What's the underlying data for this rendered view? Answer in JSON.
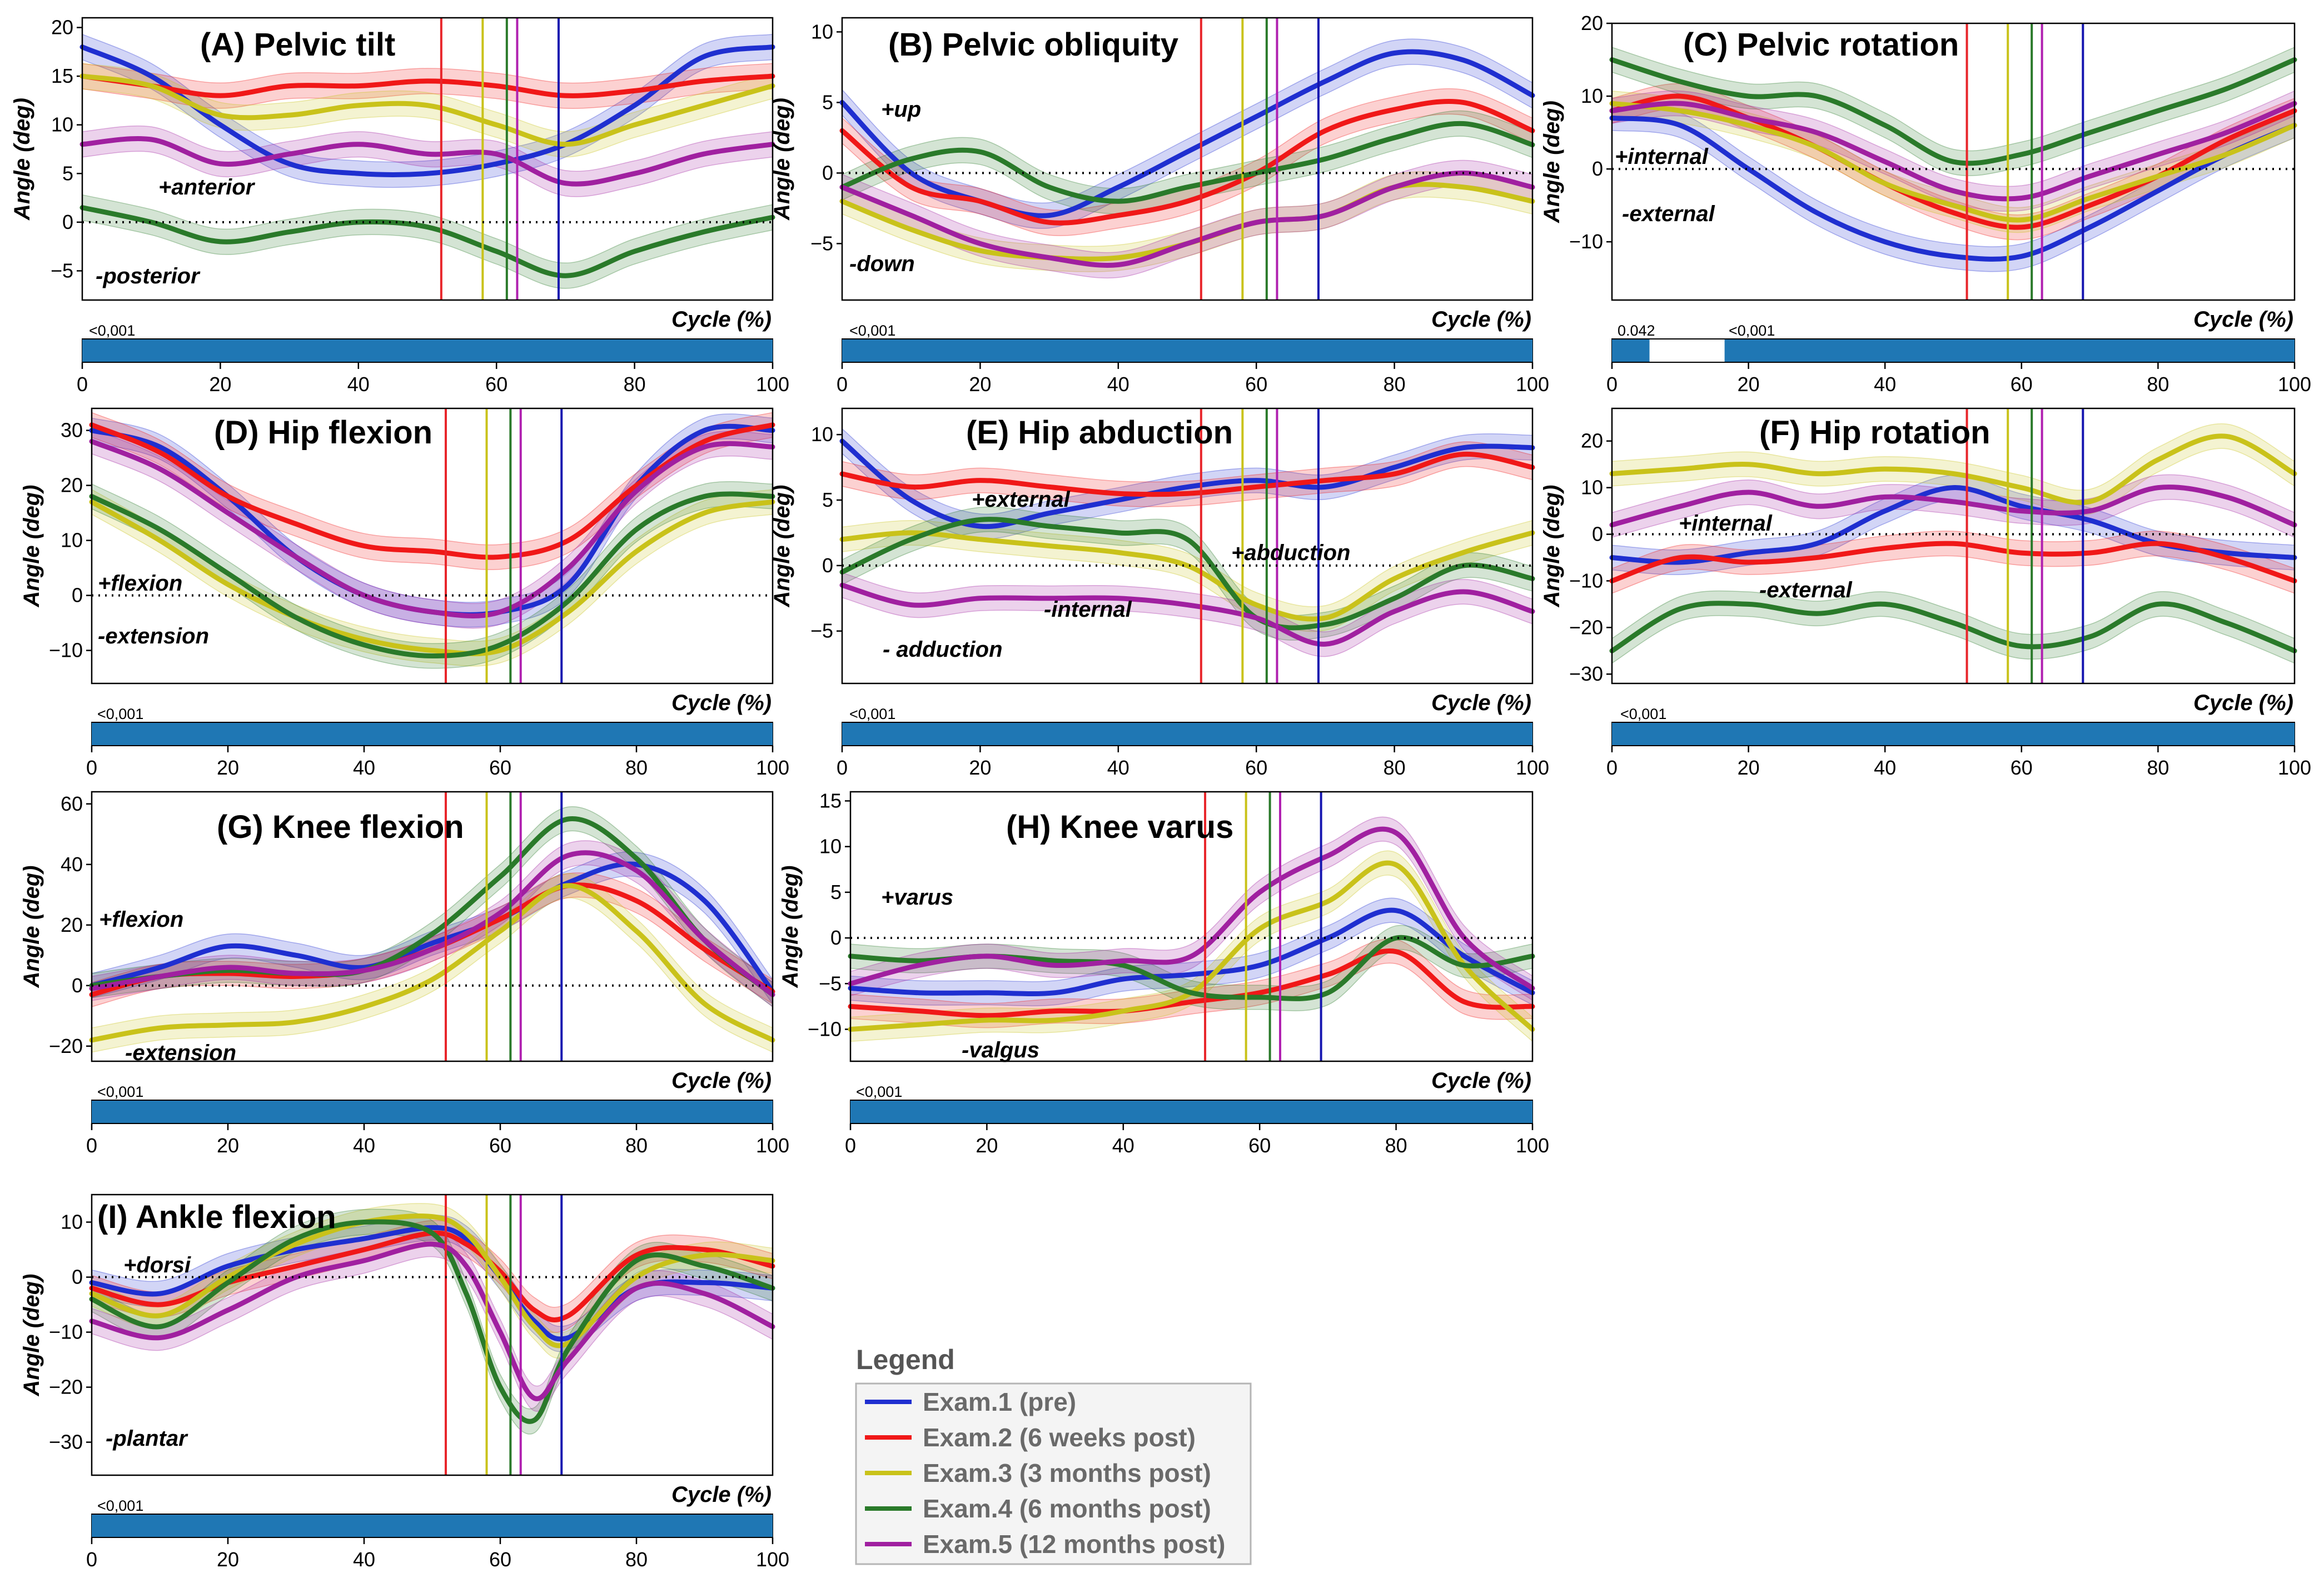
{
  "figure": {
    "x_label": "Cycle (%)",
    "y_label": "Angle (deg)",
    "x_ticks": [
      0,
      20,
      40,
      60,
      80,
      100
    ],
    "spm_color": "#1f77b4"
  },
  "events": {
    "x": [
      52,
      58,
      61.5,
      63,
      69
    ],
    "colors": [
      "#e8262b",
      "#c9c21a",
      "#2a7a2a",
      "#b020b0",
      "#1515b0"
    ]
  },
  "legend": {
    "title": "Legend",
    "items": [
      {
        "label": "Exam.1 (pre)",
        "color": "#1f2fd0"
      },
      {
        "label": "Exam.2 (6 weeks post)",
        "color": "#f01818"
      },
      {
        "label": "Exam.3 (3 months post)",
        "color": "#c9c21a"
      },
      {
        "label": "Exam.4 (6 months post)",
        "color": "#2a7a2a"
      },
      {
        "label": "Exam.5 (12 months post)",
        "color": "#a020a0"
      }
    ]
  },
  "chart_data": [
    {
      "type": "line",
      "title": "(A) Pelvic tilt",
      "xlabel": "Cycle (%)",
      "ylabel": "Angle (deg)",
      "xlim": [
        0,
        100
      ],
      "ylim": [
        -8,
        21
      ],
      "yticks": [
        -5,
        0,
        5,
        10,
        15,
        20
      ],
      "x": [
        0,
        10,
        20,
        30,
        40,
        50,
        60,
        70,
        80,
        90,
        100
      ],
      "series": [
        {
          "name": "Exam.1 (pre)",
          "values": [
            18,
            15,
            10,
            6,
            5,
            5,
            6,
            8,
            12,
            17,
            18
          ]
        },
        {
          "name": "Exam.2 (6 weeks post)",
          "values": [
            15,
            14,
            13,
            14,
            14,
            14.5,
            14,
            13,
            13.5,
            14.5,
            15
          ]
        },
        {
          "name": "Exam.3 (3 months post)",
          "values": [
            15,
            14,
            11,
            11,
            12,
            12,
            10,
            8,
            10,
            12,
            14
          ]
        },
        {
          "name": "Exam.4 (6 months post)",
          "values": [
            1.5,
            0,
            -2,
            -1,
            0,
            -0.5,
            -3,
            -5.5,
            -3,
            -1,
            0.5
          ]
        },
        {
          "name": "Exam.5 (12 months post)",
          "values": [
            8,
            8.5,
            6,
            7,
            8,
            7,
            7,
            4,
            5,
            7,
            8
          ]
        }
      ],
      "notes": [
        "+anterior",
        "-posterior"
      ],
      "pvalues": [
        "<0,001"
      ],
      "spm_ranges": [
        [
          0,
          100
        ]
      ]
    },
    {
      "type": "line",
      "title": "(B) Pelvic obliquity",
      "xlabel": "Cycle (%)",
      "ylabel": "Angle (deg)",
      "xlim": [
        0,
        100
      ],
      "ylim": [
        -9,
        11
      ],
      "yticks": [
        -5,
        0,
        5,
        10
      ],
      "x": [
        0,
        10,
        20,
        30,
        40,
        50,
        60,
        70,
        80,
        90,
        100
      ],
      "series": [
        {
          "name": "Exam.1 (pre)",
          "values": [
            5,
            0,
            -2,
            -3,
            -1,
            1.5,
            4,
            6.5,
            8.5,
            8,
            5.5
          ]
        },
        {
          "name": "Exam.2 (6 weeks post)",
          "values": [
            3,
            -1,
            -2,
            -3.5,
            -3,
            -2,
            0,
            3,
            4.5,
            5,
            3
          ]
        },
        {
          "name": "Exam.3 (3 months post)",
          "values": [
            -2,
            -4,
            -5.5,
            -6,
            -6,
            -5,
            -3.5,
            -3,
            -1,
            -1,
            -2
          ]
        },
        {
          "name": "Exam.4 (6 months post)",
          "values": [
            -1,
            1,
            1.5,
            -1,
            -2,
            -1,
            0,
            1,
            2.5,
            3.5,
            2
          ]
        },
        {
          "name": "Exam.5 (12 months post)",
          "values": [
            -1,
            -3,
            -5,
            -6,
            -6.5,
            -5,
            -3.5,
            -3,
            -1,
            0,
            -1
          ]
        }
      ],
      "notes": [
        "+up",
        "-down"
      ],
      "pvalues": [
        "<0,001"
      ],
      "spm_ranges": [
        [
          0,
          100
        ]
      ]
    },
    {
      "type": "line",
      "title": "(C) Pelvic rotation",
      "xlabel": "Cycle (%)",
      "ylabel": "Angle (deg)",
      "xlim": [
        0,
        100
      ],
      "ylim": [
        -18,
        20
      ],
      "yticks": [
        -10,
        0,
        10,
        20
      ],
      "x": [
        0,
        10,
        20,
        30,
        40,
        50,
        60,
        70,
        80,
        90,
        100
      ],
      "series": [
        {
          "name": "Exam.1 (pre)",
          "values": [
            7,
            6,
            0,
            -6,
            -10,
            -12,
            -12,
            -8,
            -3,
            2,
            6
          ]
        },
        {
          "name": "Exam.2 (6 weeks post)",
          "values": [
            8,
            10,
            7,
            3,
            -2,
            -6,
            -8,
            -5,
            -1,
            4,
            8
          ]
        },
        {
          "name": "Exam.3 (3 months post)",
          "values": [
            9,
            8,
            6,
            3,
            -2,
            -5,
            -7,
            -4,
            -1,
            2,
            6
          ]
        },
        {
          "name": "Exam.4 (6 months post)",
          "values": [
            15,
            12,
            10,
            10,
            6,
            1,
            2,
            5,
            8,
            11,
            15
          ]
        },
        {
          "name": "Exam.5 (12 months post)",
          "values": [
            8,
            9,
            7,
            5,
            1,
            -3,
            -4,
            -1,
            2,
            5,
            9
          ]
        }
      ],
      "notes": [
        "+internal",
        "-external"
      ],
      "pvalues": [
        "0.042",
        "<0,001"
      ],
      "spm_ranges": [
        [
          0,
          5.5
        ],
        [
          16.5,
          100
        ]
      ]
    },
    {
      "type": "line",
      "title": "(D) Hip flexion",
      "xlabel": "Cycle (%)",
      "ylabel": "Angle (deg)",
      "xlim": [
        0,
        100
      ],
      "ylim": [
        -16,
        34
      ],
      "yticks": [
        -10,
        0,
        10,
        20,
        30
      ],
      "x": [
        0,
        10,
        20,
        30,
        40,
        50,
        60,
        70,
        80,
        90,
        100
      ],
      "series": [
        {
          "name": "Exam.1 (pre)",
          "values": [
            30,
            27,
            18,
            7,
            0,
            -3,
            -3,
            2,
            20,
            30,
            30
          ]
        },
        {
          "name": "Exam.2 (6 weeks post)",
          "values": [
            31,
            26,
            18,
            13,
            9,
            8,
            7,
            10,
            20,
            28,
            31
          ]
        },
        {
          "name": "Exam.3 (3 months post)",
          "values": [
            17,
            10,
            2,
            -4,
            -8,
            -10,
            -10,
            -3,
            8,
            15,
            17
          ]
        },
        {
          "name": "Exam.4 (6 months post)",
          "values": [
            18,
            12,
            4,
            -4,
            -9,
            -11,
            -9,
            -1,
            12,
            18,
            18
          ]
        },
        {
          "name": "Exam.5 (12 months post)",
          "values": [
            28,
            23,
            15,
            7,
            0,
            -3,
            -3,
            5,
            19,
            27,
            27
          ]
        }
      ],
      "notes": [
        "+flexion",
        "-extension"
      ],
      "pvalues": [
        "<0,001"
      ],
      "spm_ranges": [
        [
          0,
          100
        ]
      ]
    },
    {
      "type": "line",
      "title": "(E) Hip abduction",
      "xlabel": "Cycle (%)",
      "ylabel": "Angle (deg)",
      "xlim": [
        0,
        100
      ],
      "ylim": [
        -9,
        12
      ],
      "yticks": [
        -5,
        0,
        5,
        10
      ],
      "x": [
        0,
        10,
        20,
        30,
        40,
        50,
        60,
        70,
        80,
        90,
        100
      ],
      "series": [
        {
          "name": "Exam.1 (pre)",
          "values": [
            9.5,
            5,
            3,
            4,
            5,
            6,
            6.5,
            6,
            7.5,
            9,
            9
          ]
        },
        {
          "name": "Exam.2 (6 weeks post)",
          "values": [
            7,
            6,
            6.5,
            6,
            5.5,
            5.5,
            6,
            6.5,
            7,
            8.5,
            7.5
          ]
        },
        {
          "name": "Exam.3 (3 months post)",
          "values": [
            2,
            2.5,
            2,
            1.5,
            1,
            0,
            -3,
            -4,
            -1,
            1,
            2.5
          ]
        },
        {
          "name": "Exam.4 (6 months post)",
          "values": [
            -0.5,
            2,
            3.5,
            3,
            2.5,
            2,
            -4,
            -4.5,
            -2.5,
            0,
            -1
          ]
        },
        {
          "name": "Exam.5 (12 months post)",
          "values": [
            -1.5,
            -3,
            -2.5,
            -2.5,
            -2.5,
            -3,
            -4,
            -6,
            -3.5,
            -2,
            -3.5
          ]
        }
      ],
      "notes": [
        "+external",
        "+abduction",
        "-internal",
        "- adduction"
      ],
      "pvalues": [
        "<0,001"
      ],
      "spm_ranges": [
        [
          0,
          100
        ]
      ]
    },
    {
      "type": "line",
      "title": "(F) Hip rotation",
      "xlabel": "Cycle (%)",
      "ylabel": "Angle (deg)",
      "xlim": [
        0,
        100
      ],
      "ylim": [
        -32,
        27
      ],
      "yticks": [
        -30,
        -20,
        -10,
        0,
        10,
        20
      ],
      "x": [
        0,
        10,
        20,
        30,
        40,
        50,
        60,
        70,
        80,
        90,
        100
      ],
      "series": [
        {
          "name": "Exam.1 (pre)",
          "values": [
            -5,
            -6,
            -4,
            -2,
            5,
            10,
            6,
            3,
            -2,
            -4,
            -5
          ]
        },
        {
          "name": "Exam.2 (6 weeks post)",
          "values": [
            -10,
            -5,
            -6,
            -5,
            -3,
            -2,
            -4,
            -4,
            -2,
            -5,
            -10
          ]
        },
        {
          "name": "Exam.3 (3 months post)",
          "values": [
            13,
            14,
            15,
            13,
            14,
            13,
            10,
            7,
            16,
            21,
            13
          ]
        },
        {
          "name": "Exam.4 (6 months post)",
          "values": [
            -25,
            -16,
            -15,
            -17,
            -15,
            -19,
            -24,
            -22,
            -15,
            -19,
            -25
          ]
        },
        {
          "name": "Exam.5 (12 months post)",
          "values": [
            2,
            6,
            9,
            6,
            8,
            7,
            5,
            5,
            10,
            8,
            2
          ]
        }
      ],
      "notes": [
        "+internal",
        "-external"
      ],
      "pvalues": [
        "<0,001"
      ],
      "spm_ranges": [
        [
          0,
          100
        ]
      ]
    },
    {
      "type": "line",
      "title": "(G) Knee flexion",
      "xlabel": "Cycle (%)",
      "ylabel": "Angle (deg)",
      "xlim": [
        0,
        100
      ],
      "ylim": [
        -25,
        64
      ],
      "yticks": [
        -20,
        0,
        20,
        40,
        60
      ],
      "x": [
        0,
        10,
        20,
        30,
        40,
        50,
        60,
        70,
        80,
        90,
        100
      ],
      "series": [
        {
          "name": "Exam.1 (pre)",
          "values": [
            0,
            6,
            13,
            10,
            6,
            14,
            22,
            34,
            40,
            28,
            -2
          ]
        },
        {
          "name": "Exam.2 (6 weeks post)",
          "values": [
            -3,
            3,
            4,
            3,
            5,
            12,
            22,
            33,
            28,
            12,
            -2
          ]
        },
        {
          "name": "Exam.3 (3 months post)",
          "values": [
            -18,
            -14,
            -13,
            -12,
            -7,
            2,
            18,
            33,
            18,
            -6,
            -18
          ]
        },
        {
          "name": "Exam.4 (6 months post)",
          "values": [
            0,
            3,
            5,
            4,
            5,
            17,
            36,
            55,
            42,
            15,
            -3
          ]
        },
        {
          "name": "Exam.5 (12 months post)",
          "values": [
            -1,
            3,
            6,
            4,
            5,
            12,
            24,
            43,
            38,
            15,
            -3
          ]
        }
      ],
      "notes": [
        "+flexion",
        "-extension"
      ],
      "pvalues": [
        "<0,001"
      ],
      "spm_ranges": [
        [
          0,
          100
        ]
      ]
    },
    {
      "type": "line",
      "title": "(H) Knee varus",
      "xlabel": "Cycle (%)",
      "ylabel": "Angle (deg)",
      "xlim": [
        0,
        100
      ],
      "ylim": [
        -13.5,
        16
      ],
      "yticks": [
        -10,
        -5,
        0,
        5,
        10,
        15
      ],
      "x": [
        0,
        10,
        20,
        30,
        40,
        50,
        60,
        70,
        80,
        90,
        100
      ],
      "series": [
        {
          "name": "Exam.1 (pre)",
          "values": [
            -5.5,
            -6,
            -6,
            -6,
            -4.5,
            -4,
            -3,
            0,
            3,
            -2,
            -6
          ]
        },
        {
          "name": "Exam.2 (6 weeks post)",
          "values": [
            -7.5,
            -8,
            -8.5,
            -8,
            -8,
            -7,
            -6,
            -4,
            -1.5,
            -7,
            -7.5
          ]
        },
        {
          "name": "Exam.3 (3 months post)",
          "values": [
            -10,
            -9.5,
            -9,
            -9,
            -8,
            -6,
            1,
            4,
            8,
            -3,
            -10
          ]
        },
        {
          "name": "Exam.4 (6 months post)",
          "values": [
            -2,
            -2.5,
            -2,
            -2.5,
            -3,
            -6,
            -6.5,
            -6,
            0,
            -3,
            -2
          ]
        },
        {
          "name": "Exam.5 (12 months post)",
          "values": [
            -5,
            -3,
            -2,
            -3,
            -2.5,
            -2,
            5,
            9,
            11.5,
            0,
            -5.5
          ]
        }
      ],
      "notes": [
        "+varus",
        "-valgus"
      ],
      "pvalues": [
        "<0,001"
      ],
      "spm_ranges": [
        [
          0,
          100
        ]
      ]
    },
    {
      "type": "line",
      "title": "(I) Ankle flexion",
      "xlabel": "Cycle (%)",
      "ylabel": "Angle (deg)",
      "xlim": [
        0,
        100
      ],
      "ylim": [
        -36,
        15
      ],
      "yticks": [
        -30,
        -20,
        -10,
        0,
        10
      ],
      "x": [
        0,
        10,
        20,
        30,
        40,
        50,
        55,
        60,
        65,
        70,
        80,
        90,
        100
      ],
      "series": [
        {
          "name": "Exam.1 (pre)",
          "values": [
            -1,
            -3,
            2,
            5,
            7,
            9,
            7,
            0,
            -8,
            -11,
            -2,
            -1,
            -2
          ]
        },
        {
          "name": "Exam.2 (6 weeks post)",
          "values": [
            -2,
            -5,
            -1,
            2,
            5,
            8,
            6,
            1,
            -6,
            -7,
            4,
            5,
            2
          ]
        },
        {
          "name": "Exam.3 (3 months post)",
          "values": [
            -3,
            -7,
            0,
            6,
            10,
            11,
            8,
            0,
            -9,
            -12,
            0,
            4,
            3
          ]
        },
        {
          "name": "Exam.4 (6 months post)",
          "values": [
            -4,
            -9,
            -1,
            7,
            10,
            8,
            -3,
            -20,
            -26,
            -13,
            3,
            2,
            -2
          ]
        },
        {
          "name": "Exam.5 (12 months post)",
          "values": [
            -8,
            -11,
            -6,
            0,
            3,
            6,
            2,
            -10,
            -22,
            -15,
            -2,
            -3,
            -9
          ]
        }
      ],
      "notes": [
        "+dorsi",
        "-plantar"
      ],
      "pvalues": [
        "<0,001"
      ],
      "spm_ranges": [
        [
          0,
          100
        ]
      ]
    }
  ]
}
